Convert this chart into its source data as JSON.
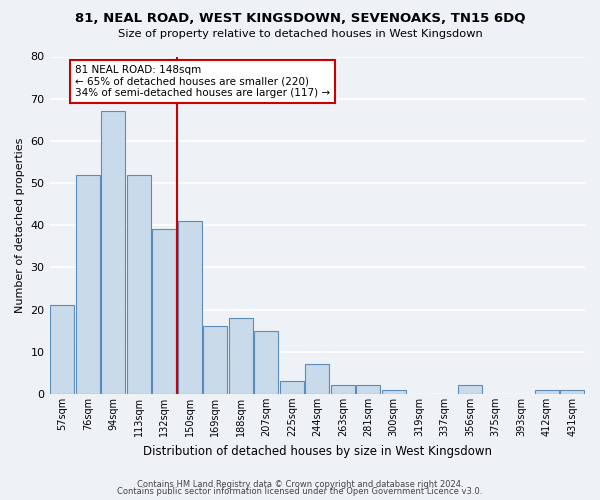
{
  "title": "81, NEAL ROAD, WEST KINGSDOWN, SEVENOAKS, TN15 6DQ",
  "subtitle": "Size of property relative to detached houses in West Kingsdown",
  "xlabel": "Distribution of detached houses by size in West Kingsdown",
  "ylabel": "Number of detached properties",
  "bar_color": "#c9daea",
  "bar_edge_color": "#5b8db8",
  "background_color": "#eef2f7",
  "grid_color": "#ffffff",
  "categories": [
    "57sqm",
    "76sqm",
    "94sqm",
    "113sqm",
    "132sqm",
    "150sqm",
    "169sqm",
    "188sqm",
    "207sqm",
    "225sqm",
    "244sqm",
    "263sqm",
    "281sqm",
    "300sqm",
    "319sqm",
    "337sqm",
    "356sqm",
    "375sqm",
    "393sqm",
    "412sqm",
    "431sqm"
  ],
  "values": [
    21,
    52,
    67,
    52,
    39,
    41,
    16,
    18,
    15,
    3,
    7,
    2,
    2,
    1,
    0,
    0,
    2,
    0,
    0,
    1,
    1
  ],
  "ylim": [
    0,
    80
  ],
  "yticks": [
    0,
    10,
    20,
    30,
    40,
    50,
    60,
    70,
    80
  ],
  "vline_x_index": 5,
  "vline_color": "#cc0000",
  "annotation_text": "81 NEAL ROAD: 148sqm\n← 65% of detached houses are smaller (220)\n34% of semi-detached houses are larger (117) →",
  "annotation_box_color": "#ffffff",
  "annotation_box_edge": "#cc0000",
  "footer1": "Contains HM Land Registry data © Crown copyright and database right 2024.",
  "footer2": "Contains public sector information licensed under the Open Government Licence v3.0."
}
